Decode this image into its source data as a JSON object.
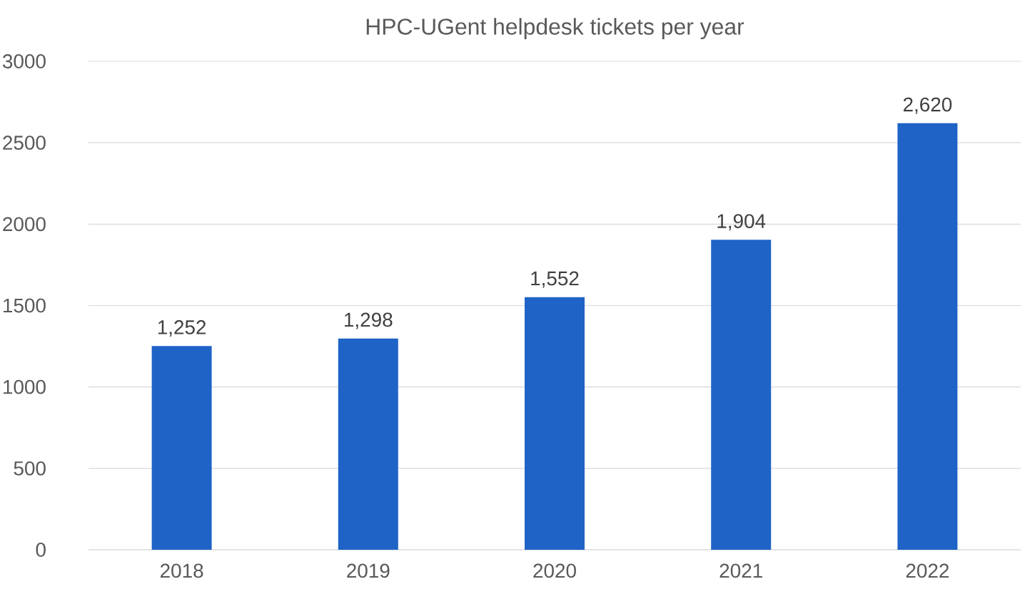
{
  "chart_data": {
    "type": "bar",
    "title": "HPC-UGent helpdesk tickets per year",
    "categories": [
      "2018",
      "2019",
      "2020",
      "2021",
      "2022"
    ],
    "values": [
      1252,
      1298,
      1552,
      1904,
      2620
    ],
    "value_labels": [
      "1,252",
      "1,298",
      "1,552",
      "1,904",
      "2,620"
    ],
    "color": "#1f63c6",
    "ylim": [
      0,
      3000
    ],
    "yticks": [
      0,
      500,
      1000,
      1500,
      2000,
      2500,
      3000
    ],
    "grid": "y"
  }
}
